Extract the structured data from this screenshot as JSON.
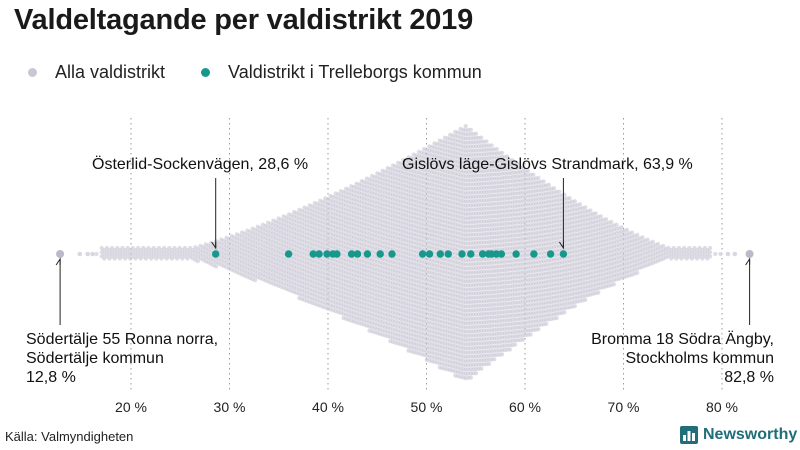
{
  "title": "Valdeltagande per valdistrikt 2019",
  "legend": [
    {
      "label": "Alla valdistrikt",
      "color": "#c9c7d3"
    },
    {
      "label": "Valdistrikt i Trelleborgs kommun",
      "color": "#16998c"
    }
  ],
  "annotations": {
    "min_line1": "Södertälje 55 Ronna norra,",
    "min_line2": "Södertälje kommun",
    "min_line3": "12,8 %",
    "max_line1": "Bromma 18 Södra Ängby,",
    "max_line2": "Stockholms kommun",
    "max_line3": "82,8 %",
    "low_trelleborg": "Österlid-Sockenvägen, 28,6 %",
    "high_trelleborg": "Gislövs läge-Gislövs Strandmark, 63,9 %"
  },
  "source": "Källa: Valmyndigheten",
  "brand": "Newsworthy",
  "chart_data": {
    "type": "scatter",
    "subtype": "beeswarm",
    "x_unit": "%",
    "xlim": [
      10,
      85
    ],
    "xticks": [
      20,
      30,
      40,
      50,
      60,
      70,
      80
    ],
    "xtick_labels": [
      "20 %",
      "30 %",
      "40 %",
      "50 %",
      "60 %",
      "70 %",
      "80 %"
    ],
    "grid": "vertical dotted",
    "series": [
      {
        "name": "Alla valdistrikt",
        "color": "#c9c7d3",
        "summary": {
          "min": 12.8,
          "max": 82.8,
          "peak": 54
        },
        "extremes": [
          {
            "label": "Södertälje 55 Ronna norra, Södertälje kommun",
            "value": 12.8
          },
          {
            "label": "Bromma 18 Södra Ängby, Stockholms kommun",
            "value": 82.8
          }
        ]
      },
      {
        "name": "Valdistrikt i Trelleborgs kommun",
        "color": "#16998c",
        "values": [
          28.6,
          36.0,
          38.5,
          39.1,
          39.9,
          40.5,
          40.9,
          42.4,
          43.0,
          44.0,
          45.3,
          46.5,
          49.6,
          50.3,
          51.4,
          52.2,
          53.6,
          54.5,
          55.7,
          56.3,
          56.6,
          57.1,
          57.6,
          59.1,
          60.9,
          62.6,
          63.9
        ]
      }
    ]
  }
}
